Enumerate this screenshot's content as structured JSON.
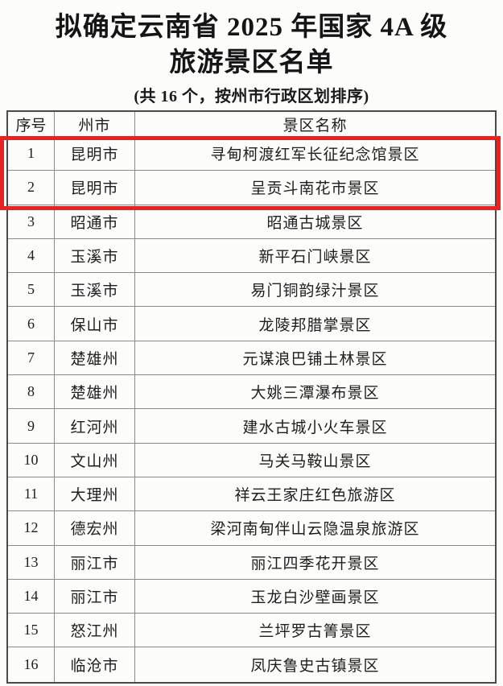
{
  "page": {
    "title_line1": "拟确定云南省 2025 年国家 4A 级",
    "title_line2": "旅游景区名单",
    "subtitle": "(共 16 个，按州市行政区划排序)"
  },
  "colors": {
    "highlight_red": "#e8231f",
    "table_border": "#4a4a4a",
    "text": "#1c1c1c"
  },
  "highlight": {
    "description": "red rectangle outlining rows 1 and 2",
    "rows_covered": [
      "1",
      "2"
    ]
  },
  "table": {
    "headers": [
      "序号",
      "州市",
      "景区名称"
    ],
    "rows": [
      {
        "no": "1",
        "city": "昆明市",
        "name": "寻甸柯渡红军长征纪念馆景区"
      },
      {
        "no": "2",
        "city": "昆明市",
        "name": "呈贡斗南花市景区"
      },
      {
        "no": "3",
        "city": "昭通市",
        "name": "昭通古城景区"
      },
      {
        "no": "4",
        "city": "玉溪市",
        "name": "新平石门峡景区"
      },
      {
        "no": "5",
        "city": "玉溪市",
        "name": "易门铜韵绿汁景区"
      },
      {
        "no": "6",
        "city": "保山市",
        "name": "龙陵邦腊掌景区"
      },
      {
        "no": "7",
        "city": "楚雄州",
        "name": "元谋浪巴铺土林景区"
      },
      {
        "no": "8",
        "city": "楚雄州",
        "name": "大姚三潭瀑布景区"
      },
      {
        "no": "9",
        "city": "红河州",
        "name": "建水古城小火车景区"
      },
      {
        "no": "10",
        "city": "文山州",
        "name": "马关马鞍山景区"
      },
      {
        "no": "11",
        "city": "大理州",
        "name": "祥云王家庄红色旅游区"
      },
      {
        "no": "12",
        "city": "德宏州",
        "name": "梁河南甸伴山云隐温泉旅游区"
      },
      {
        "no": "13",
        "city": "丽江市",
        "name": "丽江四季花开景区"
      },
      {
        "no": "14",
        "city": "丽江市",
        "name": "玉龙白沙壁画景区"
      },
      {
        "no": "15",
        "city": "怒江州",
        "name": "兰坪罗古箐景区"
      },
      {
        "no": "16",
        "city": "临沧市",
        "name": "凤庆鲁史古镇景区"
      }
    ]
  }
}
